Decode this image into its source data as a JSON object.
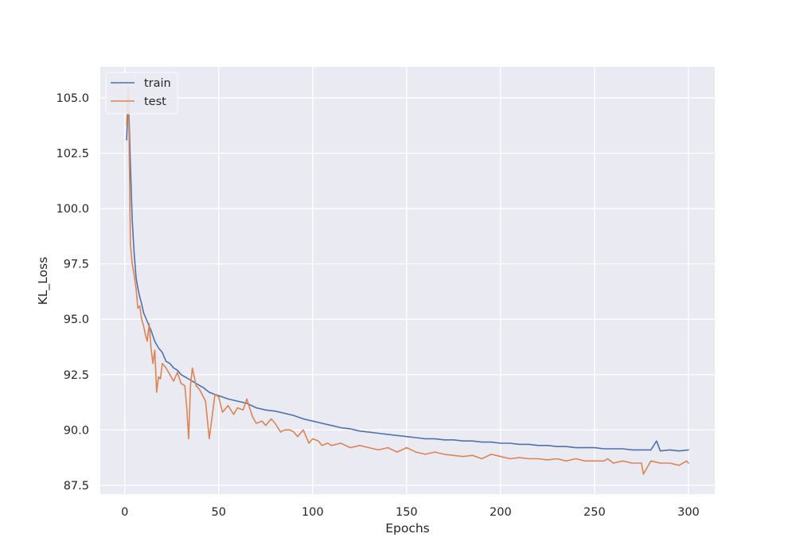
{
  "chart_data": {
    "type": "line",
    "title": "",
    "xlabel": "Epochs",
    "ylabel": "KL_Loss",
    "xlim": [
      -13,
      314
    ],
    "ylim": [
      87.1,
      106.4
    ],
    "xticks": [
      0,
      50,
      100,
      150,
      200,
      250,
      300
    ],
    "xtick_labels": [
      "0",
      "50",
      "100",
      "150",
      "200",
      "250",
      "300"
    ],
    "yticks": [
      87.5,
      90.0,
      92.5,
      95.0,
      97.5,
      100.0,
      102.5,
      105.0
    ],
    "ytick_labels": [
      "87.5",
      "90.0",
      "92.5",
      "95.0",
      "97.5",
      "100.0",
      "102.5",
      "105.0"
    ],
    "grid": true,
    "legend_position": "top-left",
    "background": "#eaeaf2",
    "series": [
      {
        "name": "train",
        "color": "#4c72b0",
        "x": [
          1,
          2,
          3,
          4,
          5,
          6,
          7,
          8,
          9,
          10,
          12,
          14,
          16,
          18,
          20,
          22,
          24,
          26,
          28,
          30,
          32,
          34,
          36,
          38,
          40,
          42,
          45,
          48,
          50,
          55,
          60,
          65,
          70,
          75,
          80,
          85,
          90,
          95,
          100,
          105,
          110,
          115,
          120,
          125,
          130,
          135,
          140,
          145,
          150,
          155,
          160,
          165,
          170,
          175,
          180,
          185,
          190,
          195,
          200,
          205,
          210,
          215,
          220,
          225,
          230,
          235,
          240,
          245,
          250,
          255,
          260,
          265,
          270,
          275,
          280,
          283,
          285,
          290,
          295,
          300
        ],
        "y": [
          103.1,
          105.1,
          102.0,
          99.5,
          98.0,
          96.9,
          96.4,
          96.0,
          95.7,
          95.3,
          94.9,
          94.5,
          94.0,
          93.7,
          93.5,
          93.1,
          93.0,
          92.8,
          92.7,
          92.5,
          92.4,
          92.3,
          92.2,
          92.1,
          92.0,
          91.9,
          91.7,
          91.6,
          91.55,
          91.4,
          91.3,
          91.2,
          91.0,
          90.9,
          90.85,
          90.75,
          90.65,
          90.5,
          90.4,
          90.3,
          90.2,
          90.1,
          90.05,
          89.95,
          89.9,
          89.85,
          89.8,
          89.75,
          89.7,
          89.65,
          89.6,
          89.6,
          89.55,
          89.55,
          89.5,
          89.5,
          89.45,
          89.45,
          89.4,
          89.4,
          89.35,
          89.35,
          89.3,
          89.3,
          89.25,
          89.25,
          89.2,
          89.2,
          89.2,
          89.15,
          89.15,
          89.15,
          89.1,
          89.1,
          89.1,
          89.5,
          89.05,
          89.1,
          89.05,
          89.1
        ]
      },
      {
        "name": "test",
        "color": "#dd8452",
        "x": [
          1,
          2,
          3,
          4,
          5,
          6,
          7,
          8,
          9,
          10,
          11,
          12,
          13,
          14,
          15,
          16,
          17,
          18,
          19,
          20,
          22,
          24,
          26,
          28,
          30,
          32,
          33,
          34,
          35,
          36,
          38,
          40,
          43,
          45,
          48,
          50,
          52,
          55,
          58,
          60,
          63,
          65,
          68,
          70,
          73,
          75,
          78,
          80,
          83,
          85,
          88,
          90,
          92,
          95,
          98,
          100,
          103,
          105,
          108,
          110,
          115,
          120,
          125,
          130,
          135,
          140,
          145,
          150,
          155,
          160,
          165,
          170,
          175,
          180,
          185,
          190,
          195,
          200,
          205,
          210,
          215,
          220,
          225,
          230,
          235,
          240,
          245,
          250,
          255,
          257,
          260,
          265,
          270,
          275,
          276,
          280,
          285,
          290,
          295,
          299,
          300
        ],
        "y": [
          103.8,
          105.5,
          98.4,
          97.5,
          97.0,
          96.4,
          95.5,
          95.6,
          95.0,
          94.7,
          94.3,
          94.0,
          94.8,
          93.7,
          93.0,
          93.6,
          91.7,
          92.4,
          92.3,
          93.0,
          92.8,
          92.5,
          92.2,
          92.6,
          92.1,
          92.0,
          91.0,
          89.6,
          92.0,
          92.8,
          92.0,
          91.8,
          91.3,
          89.6,
          91.6,
          91.5,
          90.8,
          91.1,
          90.7,
          91.0,
          90.9,
          91.4,
          90.6,
          90.3,
          90.4,
          90.2,
          90.5,
          90.3,
          89.9,
          90.0,
          90.0,
          89.9,
          89.7,
          90.0,
          89.4,
          89.6,
          89.5,
          89.3,
          89.4,
          89.3,
          89.4,
          89.2,
          89.3,
          89.2,
          89.1,
          89.2,
          89.0,
          89.2,
          89.0,
          88.9,
          89.0,
          88.9,
          88.85,
          88.8,
          88.85,
          88.7,
          88.9,
          88.8,
          88.7,
          88.75,
          88.7,
          88.7,
          88.65,
          88.7,
          88.6,
          88.7,
          88.6,
          88.6,
          88.6,
          88.7,
          88.5,
          88.6,
          88.5,
          88.5,
          88.0,
          88.6,
          88.5,
          88.5,
          88.4,
          88.6,
          88.5
        ]
      }
    ]
  }
}
